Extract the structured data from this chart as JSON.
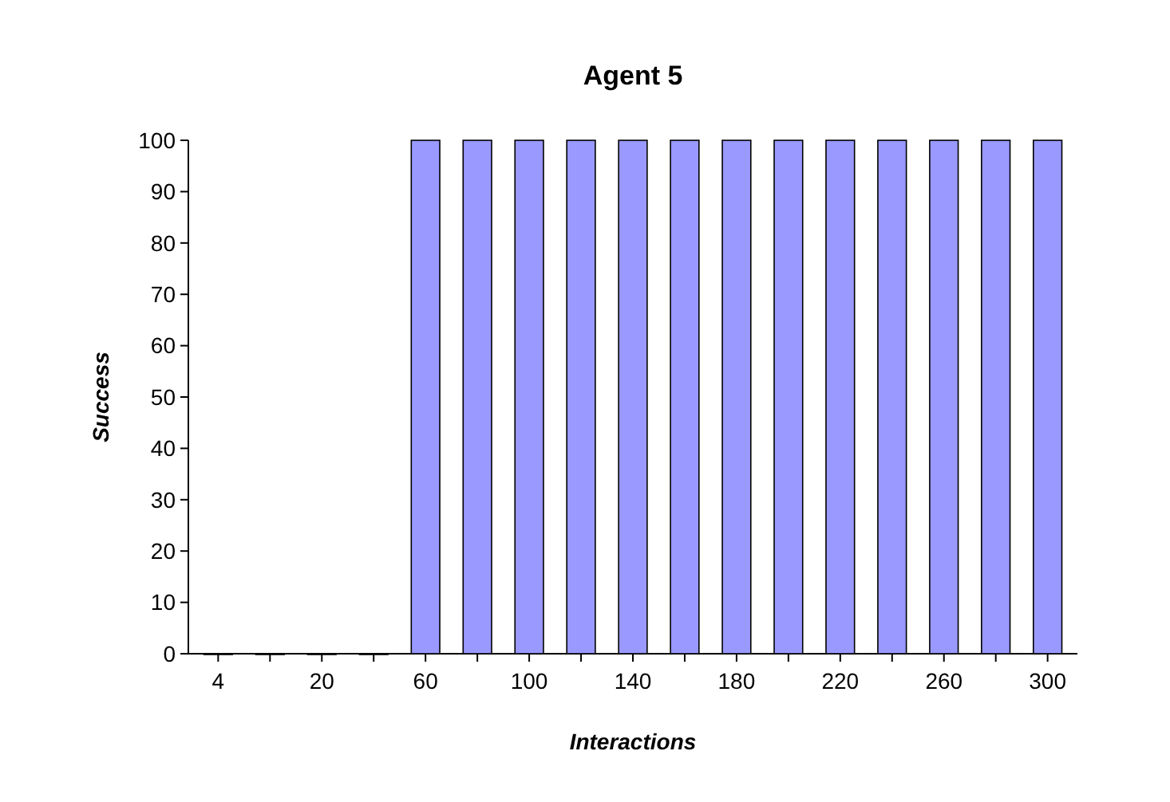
{
  "chart_data": {
    "type": "bar",
    "title": "Agent 5",
    "xlabel": "Interactions",
    "ylabel": "Success",
    "categories": [
      "4",
      null,
      "20",
      null,
      "60",
      null,
      "100",
      null,
      "140",
      null,
      "180",
      null,
      "220",
      null,
      "260",
      null,
      "300"
    ],
    "values": [
      0,
      0,
      0,
      0,
      100,
      100,
      100,
      100,
      100,
      100,
      100,
      100,
      100,
      100,
      100,
      100,
      100
    ],
    "color": "#9999ff",
    "ylim": [
      0,
      100
    ],
    "yticks": [
      0,
      10,
      20,
      30,
      40,
      50,
      60,
      70,
      80,
      90,
      100
    ],
    "grid": false
  }
}
